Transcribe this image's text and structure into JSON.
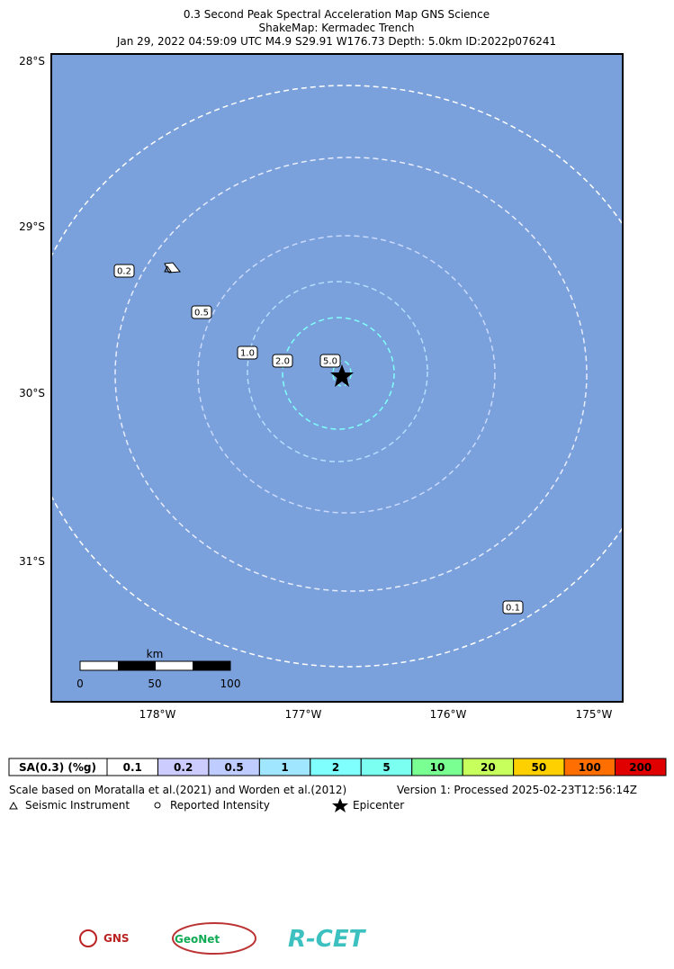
{
  "header": {
    "title": "0.3 Second Peak Spectral Acceleration Map GNS Science",
    "subtitle": "ShakeMap: Kermadec Trench",
    "event": "Jan 29, 2022 04:59:09 UTC M4.9 S29.91 W176.73 Depth: 5.0km ID:2022p076241"
  },
  "map": {
    "lat_labels": [
      "28°S",
      "29°S",
      "30°S",
      "31°S"
    ],
    "lon_labels": [
      "178°W",
      "177°W",
      "176°W",
      "175°W"
    ],
    "contour_labels": [
      "0.2",
      "0.5",
      "1.0",
      "2.0",
      "5.0",
      "0.1"
    ],
    "scale_bar": {
      "unit": "km",
      "ticks": [
        "0",
        "50",
        "100"
      ]
    }
  },
  "legend": {
    "header": "SA(0.3) (%g)",
    "bins": [
      "0.1",
      "0.2",
      "0.5",
      "1",
      "2",
      "5",
      "10",
      "20",
      "50",
      "100",
      "200"
    ],
    "colors": [
      "#ffffff",
      "#ccccff",
      "#bfccff",
      "#a0e6ff",
      "#80ffff",
      "#7afff0",
      "#7aff93",
      "#c7ff5c",
      "#ffd000",
      "#ff6e00",
      "#e00000"
    ],
    "note": "Scale based on Moratalla et al.(2021) and Worden et al.(2012)",
    "version": "Version 1: Processed 2025-02-23T12:56:14Z",
    "symbols": [
      "Seismic Instrument",
      "Reported Intensity",
      "Epicenter"
    ]
  },
  "logos": [
    "GNS",
    "GeoNet",
    "R-CET"
  ]
}
